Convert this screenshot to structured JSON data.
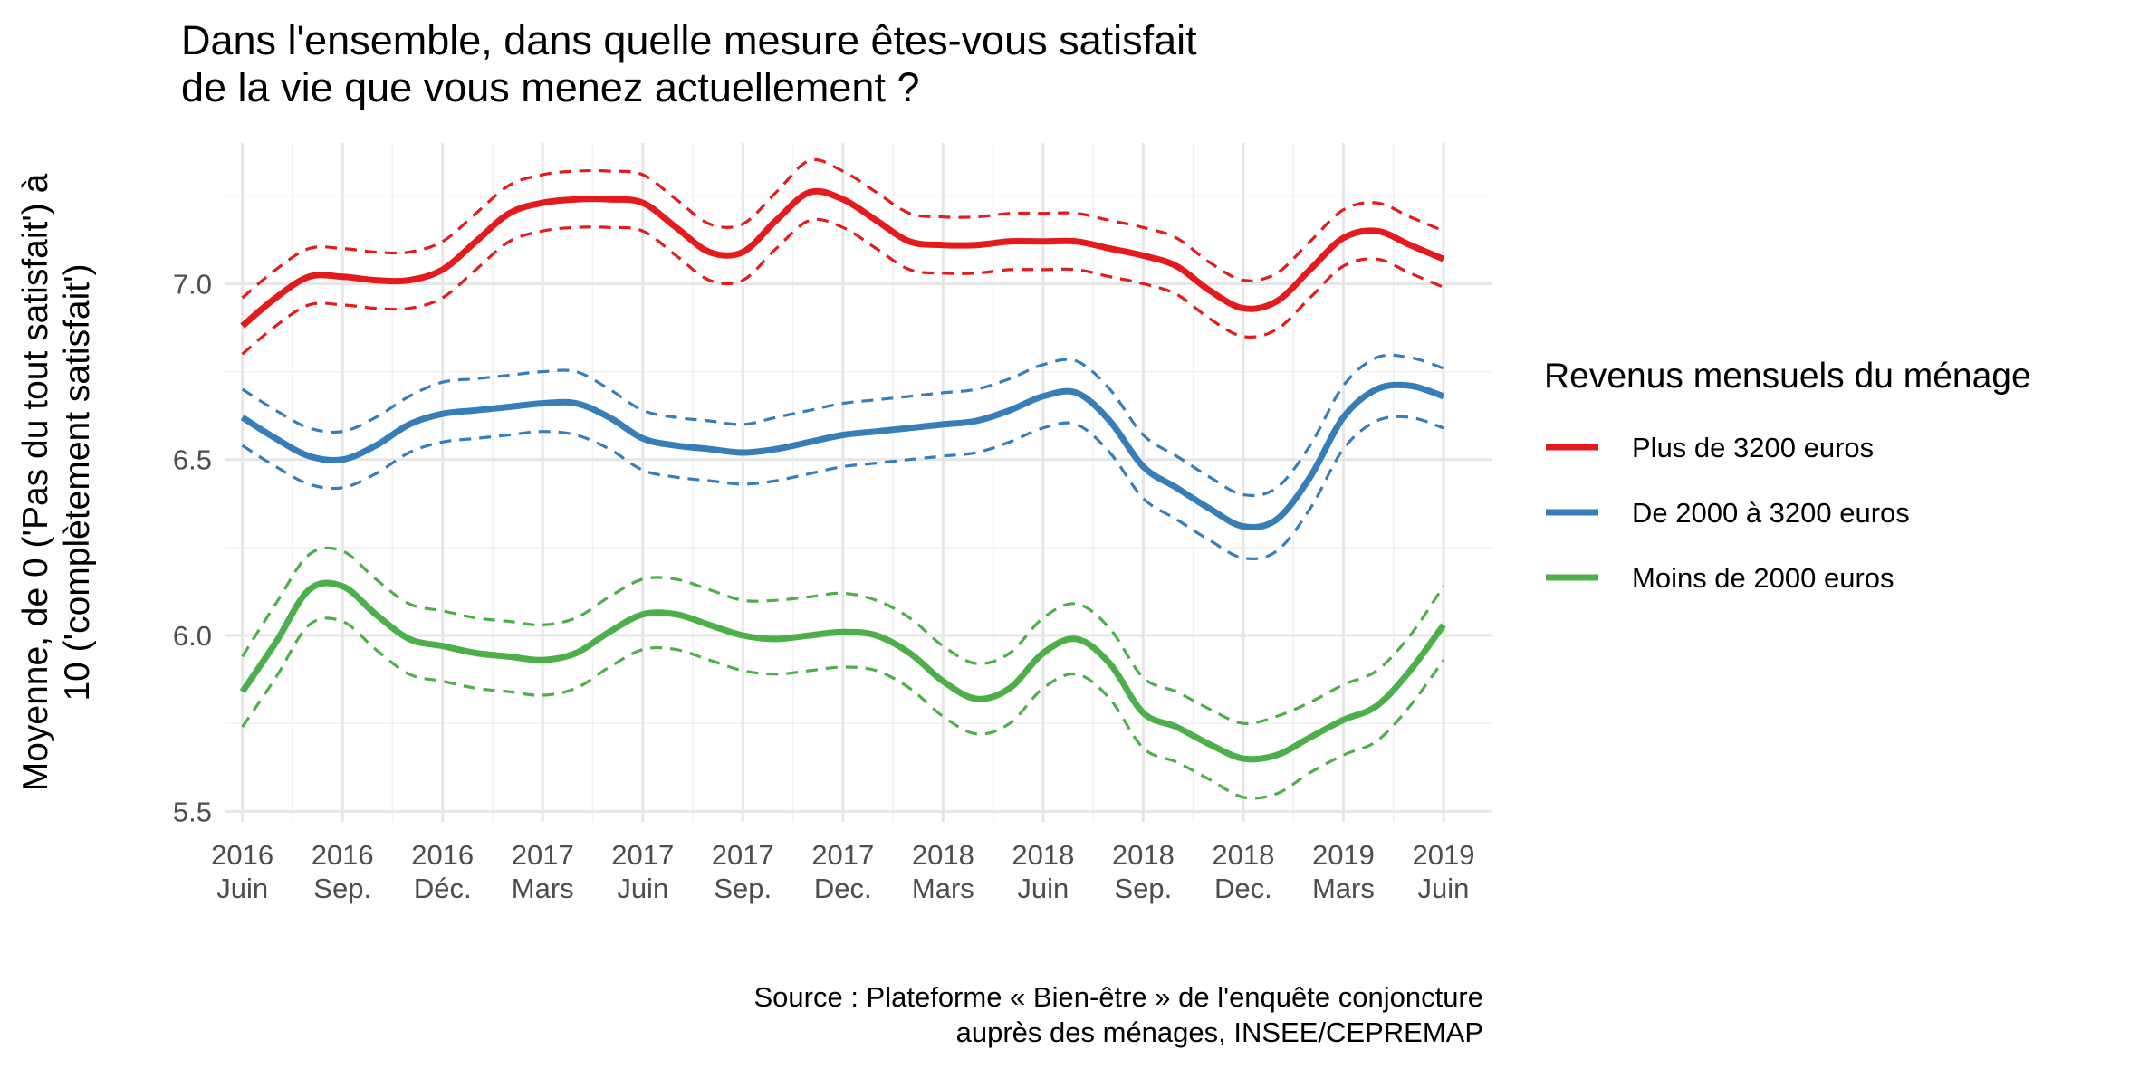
{
  "chart_data": {
    "type": "line",
    "title_lines": [
      "Dans l'ensemble, dans quelle mesure êtes-vous satisfait",
      " de la vie que vous menez actuellement ?"
    ],
    "ylabel_lines": [
      "Moyenne, de 0 ('Pas du tout satisfait') à",
      "10 ('complètement satisfait')"
    ],
    "xlabel": "",
    "caption_lines": [
      "Source : Plateforme « Bien-être » de l'enquête conjoncture",
      "auprès des ménages, INSEE/CEPREMAP"
    ],
    "legend_title": "Revenus mensuels du ménage",
    "legend_position": "right",
    "grid": true,
    "ylim": [
      5.47,
      7.4
    ],
    "yticks": [
      5.5,
      6.0,
      6.5,
      7.0
    ],
    "ytick_labels": [
      "5.5",
      "6.0",
      "6.5",
      "7.0"
    ],
    "xlim": [
      "2016-05-15",
      "2019-07-15"
    ],
    "xticks": [
      "2016-06",
      "2016-09",
      "2016-12",
      "2017-03",
      "2017-06",
      "2017-09",
      "2017-12",
      "2018-03",
      "2018-06",
      "2018-09",
      "2018-12",
      "2019-03",
      "2019-06"
    ],
    "xtick_labels": [
      [
        "2016",
        "Juin"
      ],
      [
        "2016",
        "Sep."
      ],
      [
        "2016",
        "Déc."
      ],
      [
        "2017",
        "Mars"
      ],
      [
        "2017",
        "Juin"
      ],
      [
        "2017",
        "Sep."
      ],
      [
        "2017",
        "Dec."
      ],
      [
        "2018",
        "Mars"
      ],
      [
        "2018",
        "Juin"
      ],
      [
        "2018",
        "Sep."
      ],
      [
        "2018",
        "Dec."
      ],
      [
        "2019",
        "Mars"
      ],
      [
        "2019",
        "Juin"
      ]
    ],
    "x": [
      "2016-06",
      "2016-07",
      "2016-08",
      "2016-09",
      "2016-10",
      "2016-11",
      "2016-12",
      "2017-01",
      "2017-02",
      "2017-03",
      "2017-04",
      "2017-05",
      "2017-06",
      "2017-07",
      "2017-08",
      "2017-09",
      "2017-10",
      "2017-11",
      "2017-12",
      "2018-01",
      "2018-02",
      "2018-03",
      "2018-04",
      "2018-05",
      "2018-06",
      "2018-07",
      "2018-08",
      "2018-09",
      "2018-10",
      "2018-11",
      "2018-12",
      "2019-01",
      "2019-02",
      "2019-03",
      "2019-04",
      "2019-05",
      "2019-06"
    ],
    "series": [
      {
        "name": "Plus de 3200 euros",
        "color": "#e41a1c",
        "values": [
          6.88,
          6.96,
          7.02,
          7.02,
          7.01,
          7.01,
          7.04,
          7.12,
          7.2,
          7.23,
          7.24,
          7.24,
          7.23,
          7.16,
          7.09,
          7.09,
          7.18,
          7.26,
          7.24,
          7.18,
          7.12,
          7.11,
          7.11,
          7.12,
          7.12,
          7.12,
          7.1,
          7.08,
          7.05,
          6.98,
          6.93,
          6.95,
          7.04,
          7.13,
          7.15,
          7.11,
          7.07
        ],
        "upper": [
          6.96,
          7.04,
          7.1,
          7.1,
          7.09,
          7.09,
          7.12,
          7.2,
          7.28,
          7.31,
          7.32,
          7.32,
          7.31,
          7.24,
          7.17,
          7.17,
          7.26,
          7.35,
          7.32,
          7.26,
          7.2,
          7.19,
          7.19,
          7.2,
          7.2,
          7.2,
          7.18,
          7.16,
          7.13,
          7.06,
          7.01,
          7.03,
          7.12,
          7.21,
          7.23,
          7.19,
          7.15
        ],
        "lower": [
          6.8,
          6.88,
          6.94,
          6.94,
          6.93,
          6.93,
          6.96,
          7.04,
          7.12,
          7.15,
          7.16,
          7.16,
          7.15,
          7.08,
          7.01,
          7.01,
          7.1,
          7.18,
          7.16,
          7.1,
          7.04,
          7.03,
          7.03,
          7.04,
          7.04,
          7.04,
          7.02,
          7.0,
          6.97,
          6.9,
          6.85,
          6.87,
          6.96,
          7.05,
          7.07,
          7.03,
          6.99
        ]
      },
      {
        "name": "De 2000 à 3200 euros",
        "color": "#377eb8",
        "values": [
          6.62,
          6.56,
          6.51,
          6.5,
          6.54,
          6.6,
          6.63,
          6.64,
          6.65,
          6.66,
          6.66,
          6.62,
          6.56,
          6.54,
          6.53,
          6.52,
          6.53,
          6.55,
          6.57,
          6.58,
          6.59,
          6.6,
          6.61,
          6.64,
          6.68,
          6.69,
          6.61,
          6.48,
          6.42,
          6.36,
          6.31,
          6.33,
          6.45,
          6.62,
          6.7,
          6.71,
          6.68
        ],
        "upper": [
          6.7,
          6.64,
          6.59,
          6.58,
          6.62,
          6.68,
          6.72,
          6.73,
          6.74,
          6.75,
          6.75,
          6.7,
          6.64,
          6.62,
          6.61,
          6.6,
          6.62,
          6.64,
          6.66,
          6.67,
          6.68,
          6.69,
          6.7,
          6.73,
          6.77,
          6.78,
          6.7,
          6.57,
          6.51,
          6.45,
          6.4,
          6.42,
          6.54,
          6.71,
          6.79,
          6.79,
          6.76
        ],
        "lower": [
          6.54,
          6.48,
          6.43,
          6.42,
          6.46,
          6.52,
          6.55,
          6.56,
          6.57,
          6.58,
          6.57,
          6.53,
          6.47,
          6.45,
          6.44,
          6.43,
          6.44,
          6.46,
          6.48,
          6.49,
          6.5,
          6.51,
          6.52,
          6.55,
          6.59,
          6.6,
          6.52,
          6.39,
          6.33,
          6.27,
          6.22,
          6.24,
          6.36,
          6.53,
          6.61,
          6.62,
          6.59
        ]
      },
      {
        "name": "Moins de 2000 euros",
        "color": "#4daf4a",
        "values": [
          5.84,
          5.98,
          6.13,
          6.14,
          6.06,
          5.99,
          5.97,
          5.95,
          5.94,
          5.93,
          5.95,
          6.01,
          6.06,
          6.06,
          6.03,
          6.0,
          5.99,
          6.0,
          6.01,
          6.0,
          5.95,
          5.87,
          5.82,
          5.85,
          5.95,
          5.99,
          5.92,
          5.78,
          5.74,
          5.69,
          5.65,
          5.66,
          5.71,
          5.76,
          5.8,
          5.9,
          6.03
        ],
        "upper": [
          5.94,
          6.09,
          6.23,
          6.24,
          6.16,
          6.09,
          6.07,
          6.05,
          6.04,
          6.03,
          6.05,
          6.11,
          6.16,
          6.16,
          6.13,
          6.1,
          6.1,
          6.11,
          6.12,
          6.1,
          6.05,
          5.97,
          5.92,
          5.95,
          6.05,
          6.09,
          6.02,
          5.88,
          5.84,
          5.79,
          5.75,
          5.77,
          5.81,
          5.86,
          5.9,
          6.0,
          6.14
        ],
        "lower": [
          5.74,
          5.88,
          6.03,
          6.04,
          5.96,
          5.89,
          5.87,
          5.85,
          5.84,
          5.83,
          5.85,
          5.91,
          5.96,
          5.96,
          5.93,
          5.9,
          5.89,
          5.9,
          5.91,
          5.9,
          5.85,
          5.77,
          5.72,
          5.75,
          5.85,
          5.89,
          5.82,
          5.68,
          5.64,
          5.59,
          5.54,
          5.55,
          5.61,
          5.66,
          5.7,
          5.8,
          5.93
        ]
      }
    ]
  }
}
